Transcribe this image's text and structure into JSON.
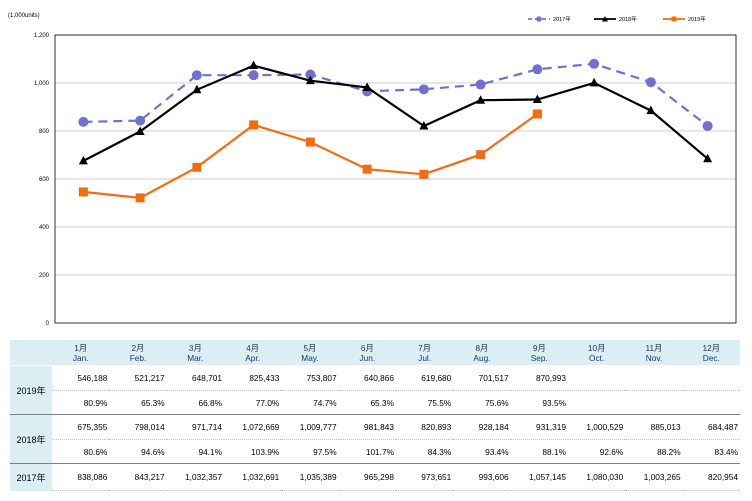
{
  "chart_data": {
    "type": "line",
    "unit_label": "(1,000units)",
    "categories": [
      "1月",
      "2月",
      "3月",
      "4月",
      "5月",
      "6月",
      "7月",
      "8月",
      "9月",
      "10月",
      "11月",
      "12月"
    ],
    "categories_en": [
      "Jan.",
      "Feb.",
      "Mar.",
      "Apr.",
      "May.",
      "Jun.",
      "Jul.",
      "Aug.",
      "Sep.",
      "Oct.",
      "Nov.",
      "Dec."
    ],
    "ylim": [
      0,
      1200
    ],
    "yticks": [
      "0",
      "200",
      "400",
      "600",
      "800",
      "1,000",
      "1,200"
    ],
    "ytick_values": [
      0,
      200,
      400,
      600,
      800,
      1000,
      1200
    ],
    "grid": true,
    "legend_position": "top-right",
    "series": [
      {
        "name": "2017年",
        "color": "#7070d0",
        "style": "dashed",
        "marker": "circle",
        "values": [
          838.086,
          843.217,
          1032.357,
          1032.691,
          1035.389,
          965.298,
          973.651,
          993.606,
          1057.145,
          1080.03,
          1003.265,
          820.954
        ]
      },
      {
        "name": "2018年",
        "color": "#000000",
        "style": "solid",
        "marker": "triangle",
        "values": [
          675.355,
          798.014,
          971.714,
          1072.669,
          1009.777,
          981.843,
          820.893,
          928.184,
          931.319,
          1000.529,
          885.013,
          684.487
        ]
      },
      {
        "name": "2019年",
        "color": "#f26d0f",
        "style": "solid",
        "marker": "square",
        "values": [
          546.188,
          521.217,
          648.701,
          825.433,
          753.807,
          640.866,
          619.68,
          701.517,
          870.993,
          null,
          null,
          null
        ]
      }
    ]
  },
  "table": {
    "header_jp": [
      "1月",
      "2月",
      "3月",
      "4月",
      "5月",
      "6月",
      "7月",
      "8月",
      "9月",
      "10月",
      "11月",
      "12月"
    ],
    "header_en": [
      "Jan.",
      "Feb.",
      "Mar.",
      "Apr.",
      "May.",
      "Jun.",
      "Jul.",
      "Aug.",
      "Sep.",
      "Oct.",
      "Nov.",
      "Dec."
    ],
    "rows": [
      {
        "label": "2019年",
        "values": [
          "546,188",
          "521,217",
          "648,701",
          "825,433",
          "753,807",
          "640,866",
          "619,680",
          "701,517",
          "870,993",
          "",
          "",
          ""
        ],
        "ratios": [
          "80.9%",
          "65.3%",
          "66.8%",
          "77.0%",
          "74.7%",
          "65.3%",
          "75.5%",
          "75.6%",
          "93.5%",
          "",
          "",
          ""
        ]
      },
      {
        "label": "2018年",
        "values": [
          "675,355",
          "798,014",
          "971,714",
          "1,072,669",
          "1,009,777",
          "981,843",
          "820,893",
          "928,184",
          "931,319",
          "1,000,529",
          "885,013",
          "684,487"
        ],
        "ratios": [
          "80.6%",
          "94.6%",
          "94.1%",
          "103.9%",
          "97.5%",
          "101.7%",
          "84.3%",
          "93.4%",
          "88.1%",
          "92.6%",
          "88.2%",
          "83.4%"
        ]
      },
      {
        "label": "2017年",
        "values": [
          "838,086",
          "843,217",
          "1,032,357",
          "1,032,691",
          "1,035,389",
          "965,298",
          "973,651",
          "993,606",
          "1,057,145",
          "1,080,030",
          "1,003,265",
          "820,954"
        ]
      }
    ]
  }
}
